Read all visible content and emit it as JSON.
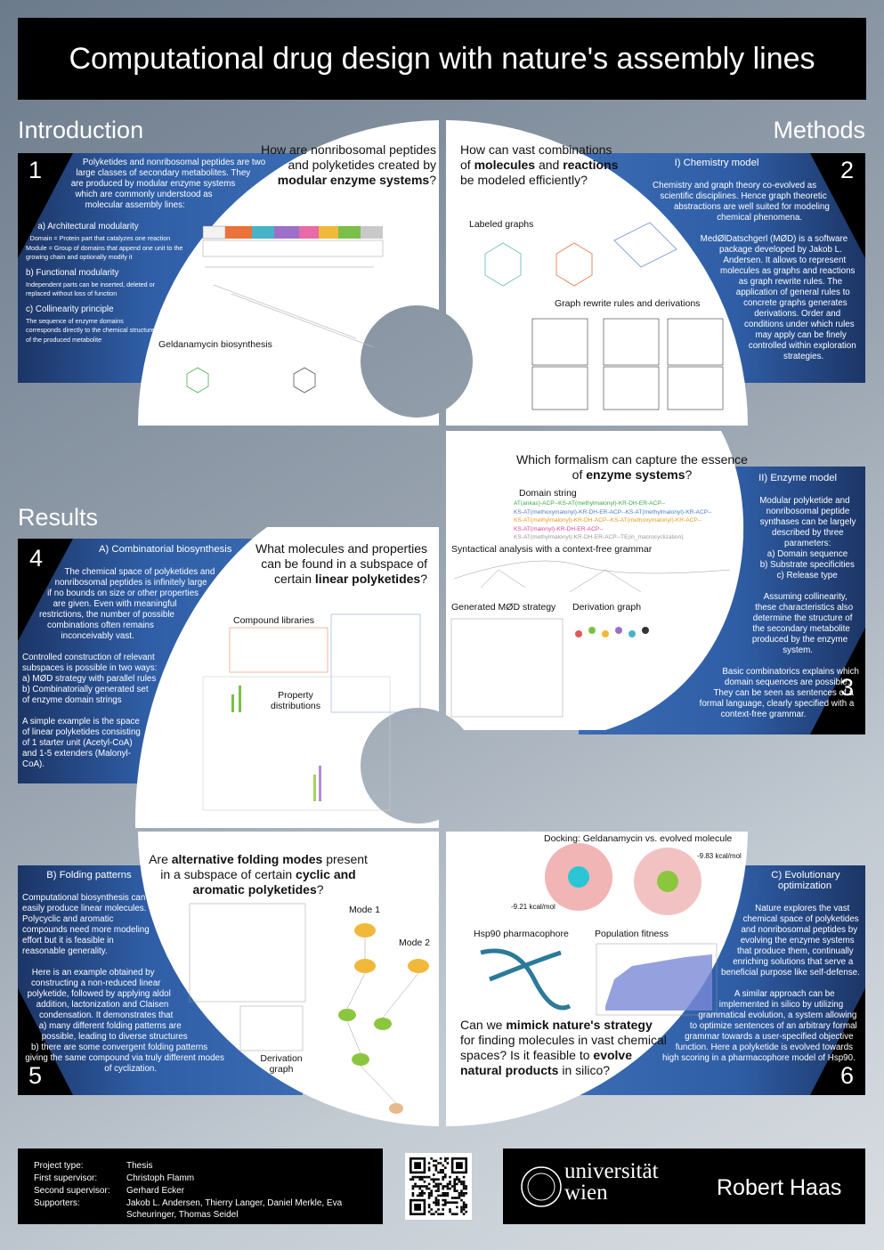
{
  "title": "Computational drug design with nature's assembly lines",
  "sections": {
    "introduction": "Introduction",
    "methods": "Methods",
    "results": "Results"
  },
  "boxes": [
    {
      "number": "1",
      "items": [
        {
          "text": "Polyketides and nonribosomal peptides are two large classes of secondary metabolites. They are produced by modular enzyme systems which are commonly understood as molecular assembly lines:",
          "style": "p"
        },
        {
          "text": "a) Architectural modularity",
          "style": "sub"
        },
        {
          "text": "Domain = Protein part that catalyzes one reaction",
          "style": "small"
        },
        {
          "text": "Module = Group of domains that append one unit to the growing chain and optionally modify it",
          "style": "small"
        },
        {
          "text": "b) Functional modularity",
          "style": "sub"
        },
        {
          "text": "Independent parts can be inserted, deleted or replaced without loss of function",
          "style": "small"
        },
        {
          "text": "c) Collinearity principle",
          "style": "sub"
        },
        {
          "text": "The sequence of enzyme domains corresponds directly to the chemical structure of the produced metabolite",
          "style": "small"
        }
      ]
    },
    {
      "number": "2",
      "heading": "I) Chemistry model",
      "items": [
        {
          "text": "Chemistry and graph theory co-evolved as scientific disciplines. Hence graph theoretic abstractions are well suited  for modeling chemical phenomena.",
          "style": "p"
        },
        {
          "text": "MedØlDatschgerl (MØD) is a software package developed by Jakob L. Andersen. It allows to represent molecules as graphs and reactions as graph rewrite rules. The application of general rules to concrete graphs generates derivations. Order and conditions under which rules may apply can be finely controlled within exploration strategies.",
          "style": "p"
        }
      ]
    },
    {
      "number": "3",
      "heading": "II) Enzyme model",
      "items": [
        {
          "text": "Modular polyketide and nonribosomal peptide synthases can be largely described by three parameters:",
          "style": "tight"
        },
        {
          "text": "a) Domain sequence",
          "style": "tight"
        },
        {
          "text": "b) Substrate specificities",
          "style": "tight"
        },
        {
          "text": "c) Release type",
          "style": "p"
        },
        {
          "text": "Assuming collinearity, these characteristics also determine the structure of the secondary metabolite produced by the enzyme system.",
          "style": "p"
        },
        {
          "text": "Basic combinatorics explains which domain sequences are possible. They can be seen as sentences of a formal language, clearly specified with a context-free grammar.",
          "style": "p"
        }
      ]
    },
    {
      "number": "4",
      "heading": "A) Combinatorial biosynthesis",
      "items": [
        {
          "text": "The chemical space of polyketides and nonribosomal peptides is infinitely large if no bounds on size or other properties are given. Even with meaningful restrictions, the number of possible combinations often remains inconceivably vast.",
          "style": "p"
        },
        {
          "text": "Controlled construction of relevant subspaces is possible in two ways:",
          "style": "lefttight"
        },
        {
          "text": "a) MØD strategy with parallel rules",
          "style": "lefttight"
        },
        {
          "text": "b) Combinatorially generated set of enzyme domain strings",
          "style": "left"
        },
        {
          "text": "A simple example is the space of linear polyketides consisting of 1 starter unit (Acetyl-CoA) and 1-5 extenders (Malonyl-CoA).",
          "style": "left"
        }
      ]
    },
    {
      "number": "5",
      "heading": "B) Folding patterns",
      "items": [
        {
          "text": "Computational biosynthesis can easily produce linear molecules. Polycyclic and aromatic compounds need more modeling effort but it is feasible in reasonable generality.",
          "style": "left"
        },
        {
          "text": "Here is an example obtained by constructing a non-reduced linear polyketide, followed by applying aldol addition, lactonization and Claisen condensation. It demonstrates that",
          "style": "tight"
        },
        {
          "text": "a) many different folding patterns are possible, leading to diverse structures",
          "style": "tight"
        },
        {
          "text": "b) there are some convergent folding patterns giving the same compound via truly different modes of cyclization.",
          "style": "p"
        }
      ]
    },
    {
      "number": "6",
      "heading": "C) Evolutionary optimization",
      "items": [
        {
          "text": "Nature explores the vast chemical space of polyketides and nonribosomal peptides by evolving the enzyme systems that produce them, continually enriching solutions that serve a beneficial purpose like self-defense.",
          "style": "p"
        },
        {
          "text": "A similar approach can be implemented in silico by utilizing grammatical evolution, a system allowing to optimize sentences of an arbitrary formal grammar towards a user-specified objective function. Here a polyketide is evolved towards high scoring in a pharmacophore model of Hsp90.",
          "style": "p"
        }
      ]
    }
  ],
  "panels": [
    {
      "question": [
        {
          "text": "How are nonribosomal peptides and polyketides created by "
        },
        {
          "text": "modular enzyme systems",
          "bold": true
        },
        {
          "text": "?"
        }
      ],
      "labels": [
        "Geldanamycin biosynthesis"
      ]
    },
    {
      "question": [
        {
          "text": "How can vast combinations of "
        },
        {
          "text": "molecules",
          "bold": true
        },
        {
          "text": " and "
        },
        {
          "text": "reactions",
          "bold": true
        },
        {
          "text": " be modeled efficiently?"
        }
      ],
      "labels": [
        "Labeled graphs",
        "Graph rewrite rules and derivations"
      ]
    },
    {
      "question": [
        {
          "text": "Which formalism can capture the essence of "
        },
        {
          "text": "enzyme systems",
          "bold": true
        },
        {
          "text": "?"
        }
      ],
      "labels": [
        "Domain string",
        "Syntactical analysis with a context-free grammar",
        "Generated MØD strategy",
        "Derivation graph"
      ],
      "domain_strings": [
        {
          "text": "AT(ankas)-ACP--KS-AT(methylmalonyl)-KR-DH-ER-ACP--",
          "color": "#3aa845"
        },
        {
          "text": "KS-AT(methoxymalonyl)-KR-DH-ER-ACP--KS-AT(methylmalonyl)-KR-ACP--",
          "color": "#4a7fc8"
        },
        {
          "text": "KS-AT(methylmalonyl)-KR-DH-ACP--KS-AT(methoxymalonyl)-KR-ACP--",
          "color": "#e89a1c"
        },
        {
          "text": "KS-AT(malonyl)-KR-DH-ER-ACP--",
          "color": "#d9449a"
        },
        {
          "text": "KS-AT(methylmalonyl)-KR-DH-ER-ACP--TE(in_macrocyclization)",
          "color": "#999999"
        }
      ]
    },
    {
      "question": [
        {
          "text": "What molecules and properties can be found in a subspace of certain "
        },
        {
          "text": "linear polyketides",
          "bold": true
        },
        {
          "text": "?"
        }
      ],
      "labels": [
        "Compound libraries",
        "Property distributions"
      ]
    },
    {
      "question": [
        {
          "text": "Are "
        },
        {
          "text": "alternative folding modes",
          "bold": true
        },
        {
          "text": " present in a subspace of certain "
        },
        {
          "text": "cyclic and aromatic polyketides",
          "bold": true
        },
        {
          "text": "?"
        }
      ],
      "labels": [
        "Mode 1",
        "Mode 2",
        "Derivation graph"
      ]
    },
    {
      "question": [
        {
          "text": "Can we "
        },
        {
          "text": "mimick nature's strategy",
          "bold": true
        },
        {
          "text": " for finding molecules in vast chemical spaces? Is it feasible to "
        },
        {
          "text": "evolve natural products",
          "bold": true
        },
        {
          "text": " in silico?"
        }
      ],
      "labels": [
        "Docking: Geldanamycin vs. evolved molecule",
        "-9.83 kcal/mol",
        "-9.21 kcal/mol",
        "Hsp90 pharmacophore",
        "Population fitness"
      ]
    }
  ],
  "footer": {
    "rows": [
      [
        "Project type:",
        "Thesis"
      ],
      [
        "First supervisor:",
        "Christoph Flamm"
      ],
      [
        "Second supervisor:",
        "Gerhard Ecker"
      ],
      [
        "Supporters:",
        "Jakob L. Andersen, Thierry Langer, Daniel Merkle, Eva Scheuringer, Thomas Seidel"
      ]
    ],
    "university": [
      "universität",
      "wien"
    ],
    "author": "Robert Haas"
  }
}
